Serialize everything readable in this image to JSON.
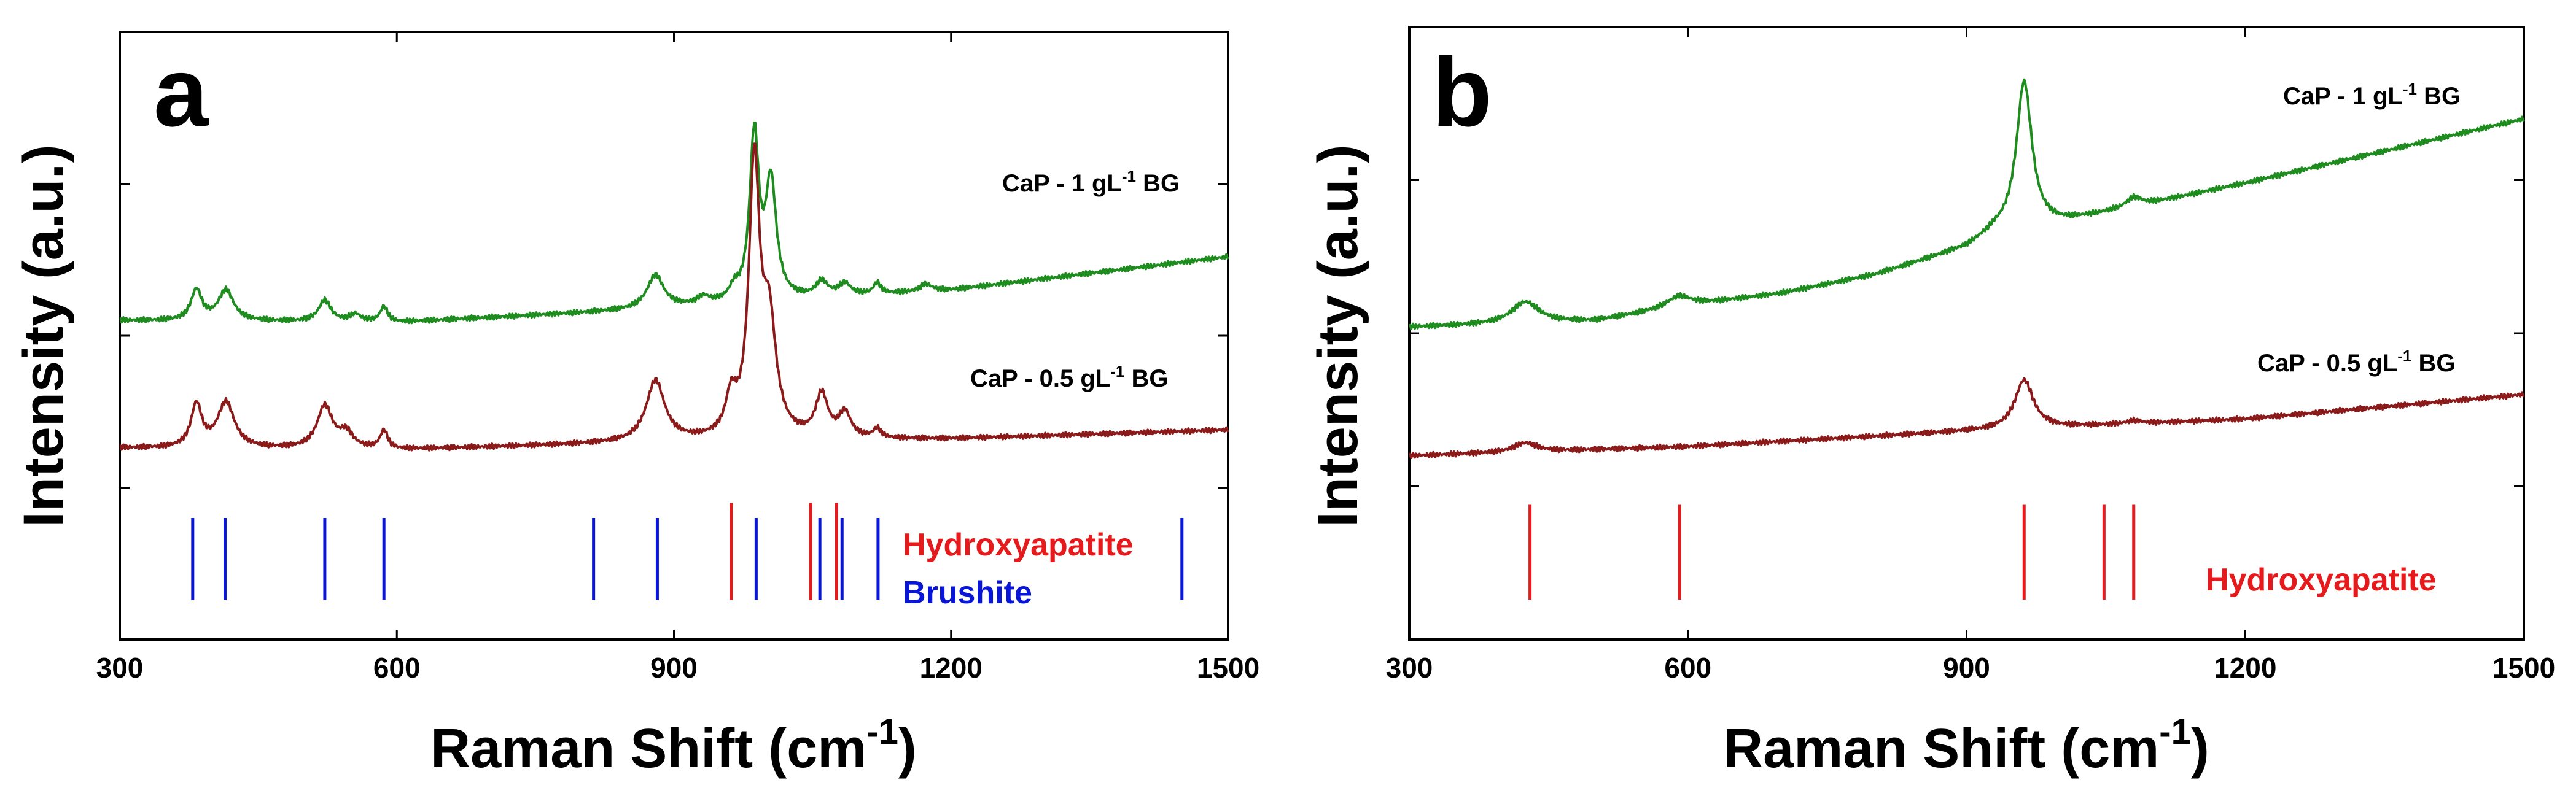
{
  "chart_data": [
    {
      "type": "line",
      "panel_label": "a",
      "title": "",
      "xlabel_main": "Raman Shift (cm",
      "xlabel_sup": "-1",
      "xlabel_end": ")",
      "ylabel": "Intensity (a.u.)",
      "xlim": [
        300,
        1500
      ],
      "xticks": [
        300,
        600,
        900,
        1200,
        1500
      ],
      "ylim": [
        0,
        1
      ],
      "yticks": [
        0.25,
        0.5,
        0.75
      ],
      "series": [
        {
          "name": "CaP - 1 gL-1 BG",
          "label_main": "CaP - 1 gL",
          "label_sup": "-1",
          "label_end": " BG",
          "color": "#1e8c1e",
          "baseline": [
            [
              300,
              0.525
            ],
            [
              600,
              0.522
            ],
            [
              900,
              0.545
            ],
            [
              1200,
              0.575
            ],
            [
              1500,
              0.63
            ]
          ],
          "peaks": [
            [
              383,
              0.05,
              7
            ],
            [
              415,
              0.05,
              10
            ],
            [
              522,
              0.035,
              8
            ],
            [
              555,
              0.012,
              7
            ],
            [
              586,
              0.025,
              5
            ],
            [
              880,
              0.055,
              11
            ],
            [
              932,
              0.012,
              8
            ],
            [
              965,
              0.018,
              6
            ],
            [
              987,
              0.27,
              6
            ],
            [
              1005,
              0.19,
              7
            ],
            [
              1060,
              0.025,
              8
            ],
            [
              1085,
              0.02,
              8
            ],
            [
              1120,
              0.018,
              5
            ],
            [
              1173,
              0.012,
              8
            ]
          ]
        },
        {
          "name": "CaP - 0.5 gL-1 BG",
          "label_main": "CaP - 0.5 gL",
          "label_sup": "-1",
          "label_end": " BG",
          "color": "#8b1a1a",
          "baseline": [
            [
              300,
              0.315
            ],
            [
              600,
              0.312
            ],
            [
              900,
              0.325
            ],
            [
              1200,
              0.33
            ],
            [
              1500,
              0.345
            ]
          ],
          "peaks": [
            [
              383,
              0.07,
              7
            ],
            [
              415,
              0.075,
              11
            ],
            [
              522,
              0.07,
              10
            ],
            [
              545,
              0.025,
              9
            ],
            [
              586,
              0.03,
              5
            ],
            [
              880,
              0.1,
              12
            ],
            [
              962,
              0.06,
              7
            ],
            [
              987,
              0.44,
              7
            ],
            [
              1003,
              0.18,
              9
            ],
            [
              1060,
              0.07,
              8
            ],
            [
              1085,
              0.04,
              8
            ],
            [
              1120,
              0.015,
              5
            ]
          ]
        }
      ],
      "references": [
        {
          "name": "Hydroxyapatite",
          "color": "#e41a1c",
          "positions": [
            962,
            1048,
            1076
          ],
          "height": 0.16
        },
        {
          "name": "Brushite",
          "color": "#0a16d6",
          "positions": [
            379,
            414,
            522,
            586,
            813,
            882,
            989,
            1058,
            1082,
            1121,
            1450
          ],
          "height": 0.135
        }
      ],
      "annotations": [
        "a",
        "CaP - 1 gL-1 BG",
        "CaP - 0.5 gL-1 BG",
        "Hydroxyapatite",
        "Brushite"
      ]
    },
    {
      "type": "line",
      "panel_label": "b",
      "title": "",
      "xlabel_main": "Raman Shift (cm",
      "xlabel_sup": "-1",
      "xlabel_end": ")",
      "ylabel": "Intensity (a.u.)",
      "xlim": [
        300,
        1500
      ],
      "xticks": [
        300,
        600,
        900,
        1200,
        1500
      ],
      "ylim": [
        0,
        1
      ],
      "yticks": [
        0.25,
        0.5,
        0.75
      ],
      "series": [
        {
          "name": "CaP - 1 gL-1 BG",
          "label_main": "CaP - 1 gL",
          "label_sup": "-1",
          "label_end": " BG",
          "color": "#1e8c1e",
          "baseline": [
            [
              300,
              0.51
            ],
            [
              400,
              0.515
            ],
            [
              500,
              0.52
            ],
            [
              600,
              0.545
            ],
            [
              700,
              0.565
            ],
            [
              800,
              0.595
            ],
            [
              900,
              0.64
            ],
            [
              930,
              0.665
            ],
            [
              1000,
              0.68
            ],
            [
              1200,
              0.745
            ],
            [
              1500,
              0.85
            ]
          ],
          "peaks": [
            [
              425,
              0.035,
              18
            ],
            [
              590,
              0.018,
              16
            ],
            [
              962,
              0.24,
              10
            ],
            [
              1080,
              0.015,
              10
            ]
          ]
        },
        {
          "name": "CaP - 0.5 gL-1 BG",
          "label_main": "CaP - 0.5 gL",
          "label_sup": "-1",
          "label_end": " BG",
          "color": "#8b1a1a",
          "baseline": [
            [
              300,
              0.3
            ],
            [
              600,
              0.315
            ],
            [
              900,
              0.34
            ],
            [
              1200,
              0.36
            ],
            [
              1500,
              0.4
            ]
          ],
          "peaks": [
            [
              425,
              0.015,
              15
            ],
            [
              962,
              0.08,
              12
            ],
            [
              1080,
              0.005,
              10
            ]
          ]
        }
      ],
      "references": [
        {
          "name": "Hydroxyapatite",
          "color": "#e41a1c",
          "positions": [
            430,
            591,
            962,
            1048,
            1080
          ],
          "height": 0.155
        }
      ],
      "annotations": [
        "b",
        "CaP - 1 gL-1 BG",
        "CaP - 0.5 gL-1 BG",
        "Hydroxyapatite"
      ]
    }
  ]
}
